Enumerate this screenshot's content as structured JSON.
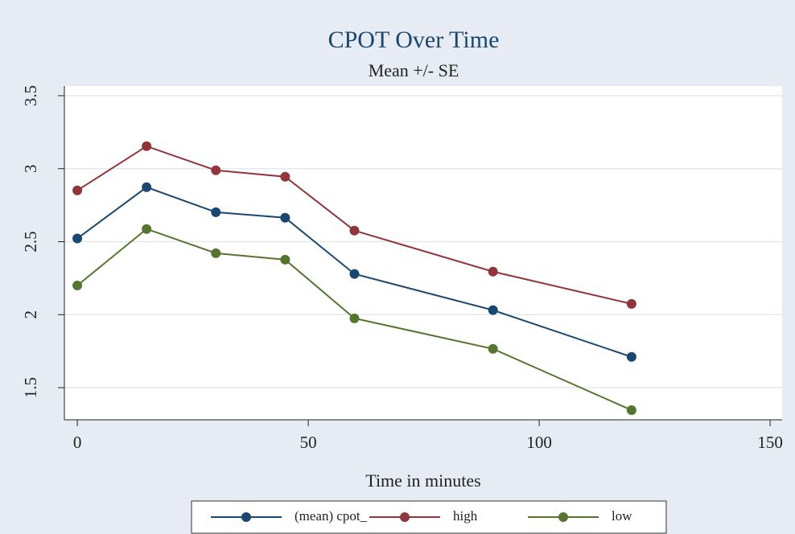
{
  "chart_data": {
    "type": "line",
    "title": "CPOT Over Time",
    "subtitle": "Mean +/- SE",
    "x_label": "Time in minutes",
    "x": [
      0,
      15,
      30,
      45,
      60,
      90,
      120
    ],
    "series": [
      {
        "name": "(mean) cpot_",
        "color": "#1a476f",
        "values": [
          2.522,
          2.873,
          2.702,
          2.664,
          2.279,
          2.031,
          1.711
        ]
      },
      {
        "name": "high",
        "color": "#90353b",
        "values": [
          2.851,
          3.154,
          2.989,
          2.945,
          2.576,
          2.295,
          2.074
        ]
      },
      {
        "name": "low",
        "color": "#55752f",
        "values": [
          2.2,
          2.587,
          2.421,
          2.377,
          1.975,
          1.766,
          1.346
        ]
      }
    ],
    "xlim": [
      -2.8,
      152.6
    ],
    "xticks": [
      0,
      50,
      100,
      150
    ],
    "ylim": [
      1.28,
      3.566
    ],
    "yticks": [
      1.5,
      2,
      2.5,
      3,
      3.5
    ],
    "grid": true
  }
}
